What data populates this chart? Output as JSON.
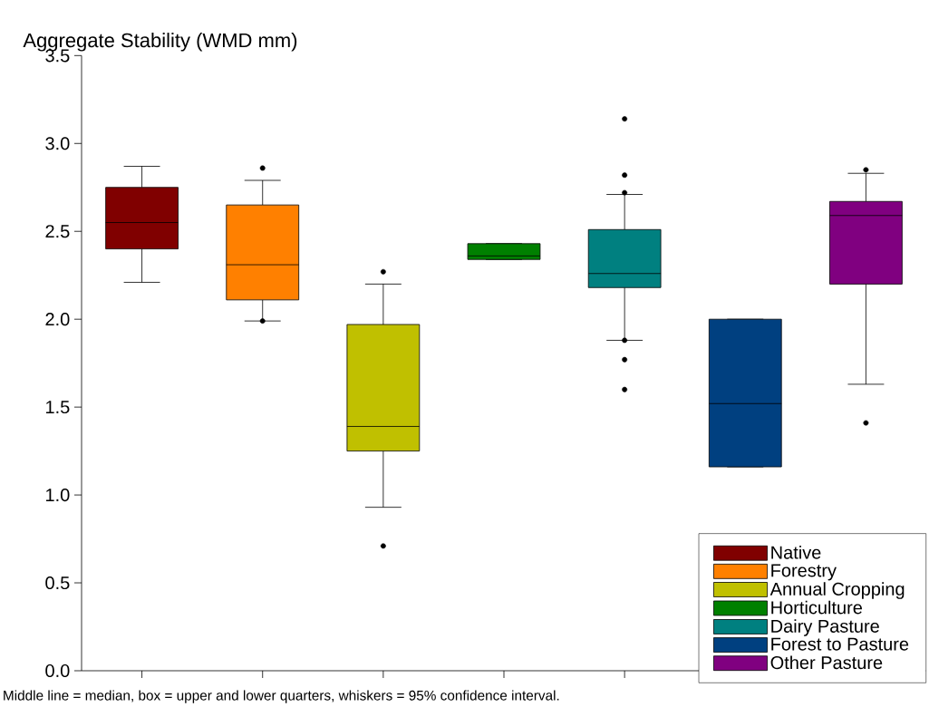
{
  "chart_data": {
    "type": "box",
    "ylabel": "Aggregate Stability (WMD mm)",
    "categories": [
      null,
      null,
      null,
      null,
      null,
      null,
      null
    ],
    "series": [
      {
        "name": "Native",
        "color": "#800000",
        "boxes": [
          {
            "low": 2.21,
            "q1": 2.4,
            "median": 2.55,
            "q3": 2.75,
            "high": 2.87
          },
          null,
          null,
          null,
          null,
          null,
          null
        ]
      },
      {
        "name": "Forestry",
        "color": "#ff8000",
        "boxes": [
          null,
          {
            "low": 1.99,
            "q1": 2.11,
            "median": 2.31,
            "q3": 2.65,
            "high": 2.79,
            "outliers": [
              2.86,
              1.99
            ]
          },
          null,
          null,
          null,
          null,
          null
        ]
      },
      {
        "name": "Annual Cropping",
        "color": "#c0c000",
        "boxes": [
          null,
          null,
          {
            "low": 0.93,
            "q1": 1.25,
            "median": 1.39,
            "q3": 1.97,
            "high": 2.2,
            "outliers": [
              2.27,
              0.71
            ]
          },
          null,
          null,
          null,
          null
        ]
      },
      {
        "name": "Horticulture",
        "color": "#008000",
        "boxes": [
          null,
          null,
          null,
          {
            "low": 2.34,
            "q1": 2.34,
            "median": 2.36,
            "q3": 2.43,
            "high": 2.43
          },
          null,
          null,
          null
        ]
      },
      {
        "name": "Dairy Pasture",
        "color": "#008080",
        "boxes": [
          null,
          null,
          null,
          null,
          {
            "low": 1.88,
            "q1": 2.18,
            "median": 2.26,
            "q3": 2.51,
            "high": 2.71,
            "outliers": [
              3.14,
              2.82,
              2.72,
              1.88,
              1.77,
              1.6
            ]
          },
          null,
          null
        ]
      },
      {
        "name": "Forest to Pasture",
        "color": "#004080",
        "boxes": [
          null,
          null,
          null,
          null,
          null,
          {
            "low": 1.16,
            "q1": 1.16,
            "median": 1.52,
            "q3": 2.0,
            "high": 2.0
          },
          null
        ]
      },
      {
        "name": "Other Pasture",
        "color": "#800080",
        "boxes": [
          null,
          null,
          null,
          null,
          null,
          null,
          {
            "low": 1.63,
            "q1": 2.2,
            "median": 2.59,
            "q3": 2.67,
            "high": 2.83,
            "outliers": [
              2.85,
              1.41
            ]
          }
        ]
      }
    ],
    "ylim": [
      0,
      3.5
    ],
    "yticks": [
      {
        "value": 0,
        "label": "0.0"
      },
      {
        "value": 0.5,
        "label": "0.5"
      },
      {
        "value": 1,
        "label": "1.0"
      },
      {
        "value": 1.5,
        "label": "1.5"
      },
      {
        "value": 2,
        "label": "2.0"
      },
      {
        "value": 2.5,
        "label": "2.5"
      },
      {
        "value": 3,
        "label": "3.0"
      },
      {
        "value": 3.5,
        "label": "3.5"
      }
    ],
    "tick_labels": "y",
    "legend": "bottom right",
    "annotations": [
      "Middle line = median, box = upper and lower quarters, whiskers = 95% confidence interval."
    ]
  }
}
